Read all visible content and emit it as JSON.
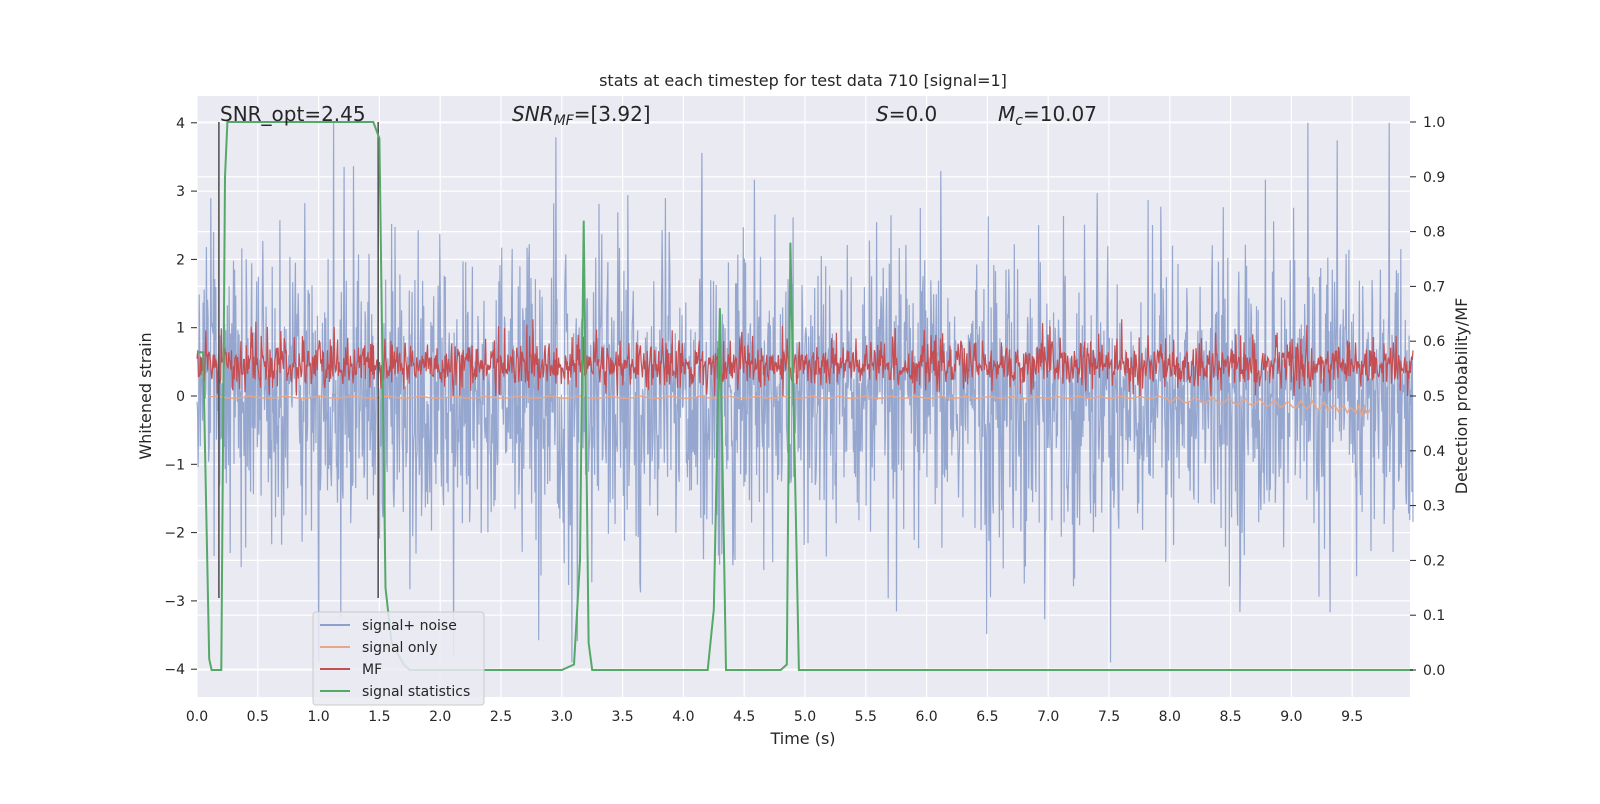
{
  "chart_data": {
    "type": "line",
    "title": "stats at each timestep for test data 710 [signal=1]",
    "xlabel": "Time (s)",
    "ylabel_left": "Whitened strain",
    "ylabel_right": "Detection probability/MF",
    "xlim": [
      0.0,
      10.0
    ],
    "ylim_left": [
      -4.4,
      4.4
    ],
    "ylim_right": [
      -0.05,
      1.05
    ],
    "x_ticks": [
      "0.0",
      "0.5",
      "1.0",
      "1.5",
      "2.0",
      "2.5",
      "3.0",
      "3.5",
      "4.0",
      "4.5",
      "5.0",
      "5.5",
      "6.0",
      "6.5",
      "7.0",
      "7.5",
      "8.0",
      "8.5",
      "9.0",
      "9.5"
    ],
    "y_left_ticks": [
      "4",
      "3",
      "2",
      "1",
      "0",
      "−1",
      "−2",
      "−3",
      "−4"
    ],
    "y_right_ticks": [
      "1.0",
      "0.9",
      "0.8",
      "0.7",
      "0.6",
      "0.5",
      "0.4",
      "0.3",
      "0.2",
      "0.1",
      "0.0"
    ],
    "grid": true,
    "legend_position": "lower-left",
    "annotations": {
      "snr_opt": "SNR_opt=2.45",
      "snr_mf_sym": "SNR",
      "snr_mf_sub": "MF",
      "snr_mf_val": "=[3.92]",
      "s_sym": "S",
      "s_val": "=0.0",
      "mc_sym": "M",
      "mc_sub": "c",
      "mc_val": "=10.07"
    },
    "vertical_markers_s": [
      0.18,
      1.49
    ],
    "series": [
      {
        "name": "signal+ noise",
        "color": "#8da0cb",
        "axis": "left",
        "description_values": {
          "typical_range": [
            -2.5,
            2.5
          ],
          "peak": 4.1
        }
      },
      {
        "name": "signal only",
        "color": "#e8a587",
        "axis": "left",
        "chirp_end_s": 9.65
      },
      {
        "name": "MF",
        "color": "#c44e52",
        "axis": "right",
        "typical_range": [
          0.5,
          0.62
        ]
      },
      {
        "name": "signal statistics",
        "color": "#55a868",
        "axis": "right",
        "x": [
          0.0,
          0.05,
          0.1,
          0.12,
          0.2,
          0.23,
          0.25,
          1.45,
          1.5,
          1.55,
          1.6,
          1.7,
          1.75,
          2.0,
          3.0,
          3.1,
          3.15,
          3.18,
          3.22,
          3.25,
          4.2,
          4.25,
          4.3,
          4.35,
          4.8,
          4.85,
          4.88,
          4.95,
          10.0
        ],
        "y": [
          0.58,
          0.58,
          0.02,
          0.0,
          0.0,
          0.9,
          1.0,
          1.0,
          0.97,
          0.15,
          0.05,
          0.01,
          0.0,
          0.0,
          0.0,
          0.01,
          0.2,
          0.82,
          0.05,
          0.0,
          0.0,
          0.11,
          0.66,
          0.0,
          0.0,
          0.01,
          0.78,
          0.0,
          0.0
        ]
      }
    ]
  }
}
